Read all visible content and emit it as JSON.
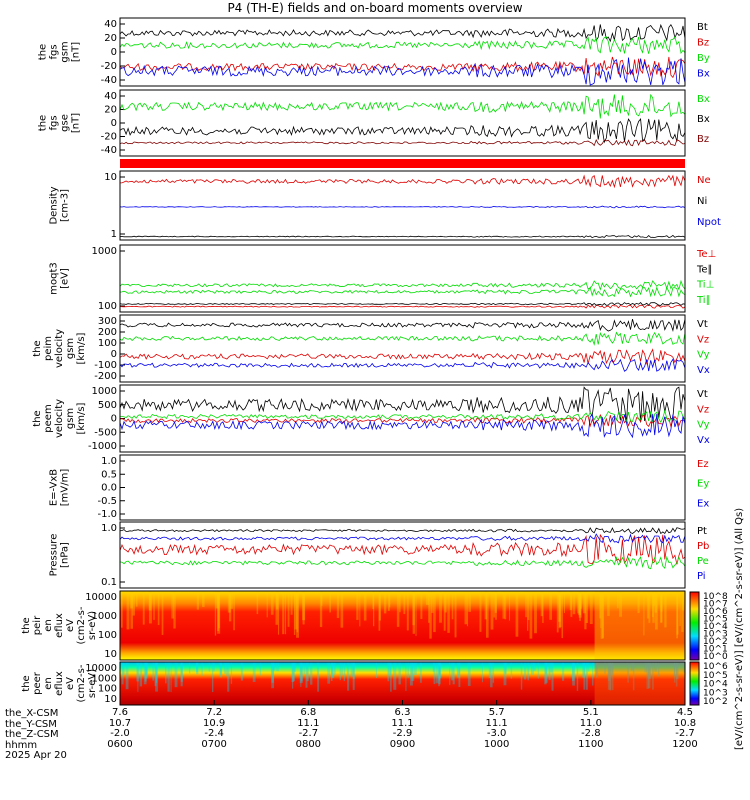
{
  "title": "P4 (TH-E) fields and on-board moments overview",
  "colors": {
    "black": "#000000",
    "red": "#e00000",
    "green": "#00dd00",
    "blue": "#0000ee",
    "darkred": "#800000"
  },
  "chart_data": [
    {
      "type": "line",
      "id": "fgs_gsm",
      "ylabel": [
        "the",
        "fgs",
        "gsm",
        "[nT]"
      ],
      "ylim": [
        -40,
        55
      ],
      "yticks": [
        "40",
        "20",
        "0",
        "-20",
        "-40"
      ],
      "series": [
        {
          "name": "Bt",
          "color": "black"
        },
        {
          "name": "Bz",
          "color": "red"
        },
        {
          "name": "By",
          "color": "green"
        },
        {
          "name": "Bx",
          "color": "blue"
        }
      ]
    },
    {
      "type": "line",
      "id": "fgs_gse",
      "ylabel": [
        "the",
        "fgs",
        "gse",
        "[nT]"
      ],
      "ylim": [
        -55,
        45
      ],
      "yticks": [
        "40",
        "20",
        "0",
        "-20",
        "-40"
      ],
      "series": [
        {
          "name": "Bx",
          "color": "green"
        },
        {
          "name": "Bx",
          "color": "black"
        },
        {
          "name": "Bz",
          "color": "darkred"
        }
      ]
    },
    {
      "type": "line",
      "id": "density",
      "ylabel": [
        "Density",
        "[cm-3]"
      ],
      "scale": "log",
      "yticks": [
        "10",
        "1"
      ],
      "series": [
        {
          "name": "Ne",
          "color": "red"
        },
        {
          "name": "Ni",
          "color": "black"
        },
        {
          "name": "Npot",
          "color": "blue"
        }
      ]
    },
    {
      "type": "line",
      "id": "temp",
      "ylabel": [
        "moqt3",
        "[eV]"
      ],
      "scale": "log",
      "yticks": [
        "1000",
        "100"
      ],
      "series": [
        {
          "name": "Te⊥",
          "color": "red"
        },
        {
          "name": "Te∥",
          "color": "black"
        },
        {
          "name": "Ti⊥",
          "color": "green"
        },
        {
          "name": "Ti∥",
          "color": "green"
        }
      ]
    },
    {
      "type": "line",
      "id": "peim_vel",
      "ylabel": [
        "the",
        "peim",
        "velocity",
        "gsm",
        "[km/s]"
      ],
      "ylim": [
        -200,
        320
      ],
      "yticks": [
        "300",
        "200",
        "100",
        "0",
        "-100",
        "-200"
      ],
      "series": [
        {
          "name": "Vt",
          "color": "black"
        },
        {
          "name": "Vz",
          "color": "red"
        },
        {
          "name": "Vy",
          "color": "green"
        },
        {
          "name": "Vx",
          "color": "blue"
        }
      ]
    },
    {
      "type": "line",
      "id": "peem_vel",
      "ylabel": [
        "the",
        "peem",
        "velocity",
        "gsm",
        "[km/s]"
      ],
      "ylim": [
        -1000,
        1000
      ],
      "yticks": [
        "1000",
        "500",
        "0",
        "-500",
        "-1000"
      ],
      "series": [
        {
          "name": "Vt",
          "color": "black"
        },
        {
          "name": "Vz",
          "color": "red"
        },
        {
          "name": "Vy",
          "color": "green"
        },
        {
          "name": "Vx",
          "color": "blue"
        }
      ]
    },
    {
      "type": "line",
      "id": "efield",
      "ylabel": [
        "E=-VxB",
        "[mV/m]"
      ],
      "ylim": [
        -1,
        1
      ],
      "yticks": [
        "1.0",
        "0.5",
        "0.0",
        "-0.5",
        "-1.0"
      ],
      "series": [
        {
          "name": "Ez",
          "color": "red"
        },
        {
          "name": "Ey",
          "color": "green"
        },
        {
          "name": "Ex",
          "color": "blue"
        }
      ]
    },
    {
      "type": "line",
      "id": "pressure",
      "ylabel": [
        "Pressure",
        "[nPa]"
      ],
      "scale": "log",
      "yticks": [
        "1.0",
        "0.1"
      ],
      "series": [
        {
          "name": "Pt",
          "color": "black"
        },
        {
          "name": "Pb",
          "color": "red"
        },
        {
          "name": "Pe",
          "color": "green"
        },
        {
          "name": "Pi",
          "color": "blue"
        }
      ]
    },
    {
      "type": "heatmap",
      "id": "peir_eflux",
      "ylabel": [
        "the",
        "peir",
        "en",
        "eflux",
        "eV",
        "(cm2-s-",
        "sr-eV)"
      ],
      "scale": "log",
      "yticks": [
        "10000",
        "1000",
        "100",
        "10"
      ]
    },
    {
      "type": "heatmap",
      "id": "peer_eflux",
      "ylabel": [
        "the",
        "peer",
        "en",
        "eflux",
        "eV",
        "(cm2-s-",
        "sr-eV)"
      ],
      "scale": "log",
      "yticks": [
        "10000",
        "1000",
        "100",
        "10"
      ]
    }
  ],
  "colorbar": {
    "label": "[eV/(cm^2-s-sr-eV)] [eV/(cm^2-s-sr-eV)] (All Qs)",
    "ticks_top": [
      "10^8",
      "10^7",
      "10^6",
      "10^5",
      "10^4",
      "10^3",
      "10^2",
      "10^1",
      "10^0"
    ],
    "ticks_bottom": [
      "10^6",
      "10^5",
      "10^4",
      "10^3",
      "10^2"
    ]
  },
  "x_axis": {
    "row_labels": [
      "the_X-CSM",
      "the_Y-CSM",
      "the_Z-CSM",
      "hhmm",
      "2025 Apr 20"
    ],
    "ticks": [
      {
        "x": "7.6",
        "y": "10.7",
        "z": "-2.0",
        "t": "0600"
      },
      {
        "x": "7.2",
        "y": "10.9",
        "z": "-2.4",
        "t": "0700"
      },
      {
        "x": "6.8",
        "y": "11.1",
        "z": "-2.7",
        "t": "0800"
      },
      {
        "x": "6.3",
        "y": "11.1",
        "z": "-2.9",
        "t": "0900"
      },
      {
        "x": "5.7",
        "y": "11.1",
        "z": "-3.0",
        "t": "1000"
      },
      {
        "x": "5.1",
        "y": "11.0",
        "z": "-2.8",
        "t": "1100"
      },
      {
        "x": "4.5",
        "y": "10.8",
        "z": "-2.7",
        "t": "1200"
      }
    ]
  }
}
